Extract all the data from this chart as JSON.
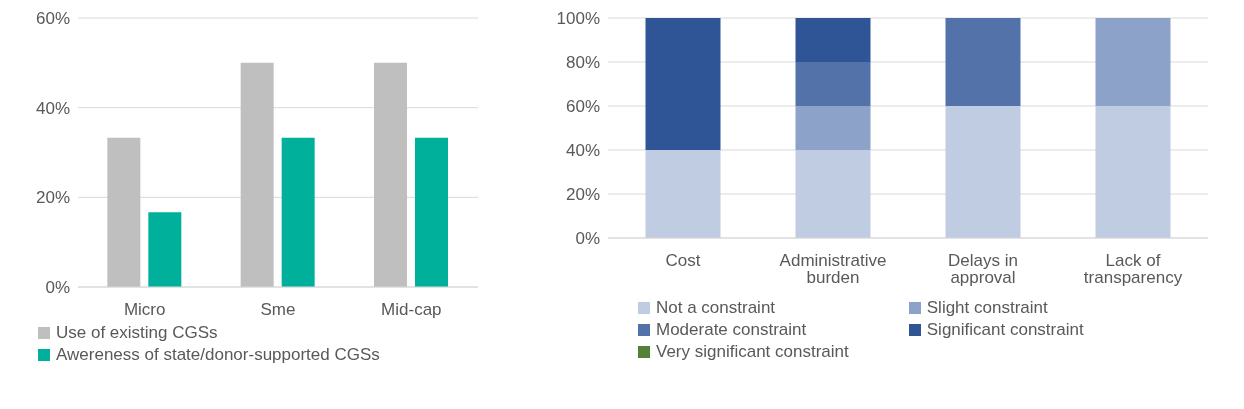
{
  "chart_data": [
    {
      "type": "bar",
      "categories": [
        "Micro",
        "Sme",
        "Mid-cap"
      ],
      "series": [
        {
          "name": "Use of existing CGSs",
          "color": "#bfbfbf",
          "values": [
            33.3,
            50,
            50
          ]
        },
        {
          "name": "Awereness of state/donor-supported CGSs",
          "color": "#00b09b",
          "values": [
            16.7,
            33.3,
            33.3
          ]
        }
      ],
      "ylim": [
        0,
        60
      ],
      "yticks": [
        {
          "value": 0,
          "label": "0%"
        },
        {
          "value": 20,
          "label": "20%"
        },
        {
          "value": 40,
          "label": "40%"
        },
        {
          "value": 60,
          "label": "60%"
        }
      ],
      "grid": "y",
      "legend": "bottom"
    },
    {
      "type": "bar",
      "stacked": true,
      "categories": [
        "Cost",
        "Administrative burden",
        "Delays in approval",
        "Lack of transparency"
      ],
      "series": [
        {
          "name": "Not a constraint",
          "color": "#c0cce2",
          "values": [
            40,
            40,
            60,
            60
          ]
        },
        {
          "name": "Slight constraint",
          "color": "#8da2c8",
          "values": [
            0,
            20,
            0,
            40
          ]
        },
        {
          "name": "Moderate constraint",
          "color": "#5372aa",
          "values": [
            0,
            20,
            40,
            0
          ]
        },
        {
          "name": "Significant constraint",
          "color": "#2f5597",
          "values": [
            60,
            20,
            0,
            0
          ]
        },
        {
          "name": "Very significant constraint",
          "color": "#548235",
          "values": [
            0,
            0,
            0,
            0
          ]
        }
      ],
      "ylim": [
        0,
        100
      ],
      "yticks": [
        {
          "value": 0,
          "label": "0%"
        },
        {
          "value": 20,
          "label": "20%"
        },
        {
          "value": 40,
          "label": "40%"
        },
        {
          "value": 60,
          "label": "60%"
        },
        {
          "value": 80,
          "label": "80%"
        },
        {
          "value": 100,
          "label": "100%"
        }
      ],
      "grid": "y",
      "legend": "bottom"
    }
  ]
}
